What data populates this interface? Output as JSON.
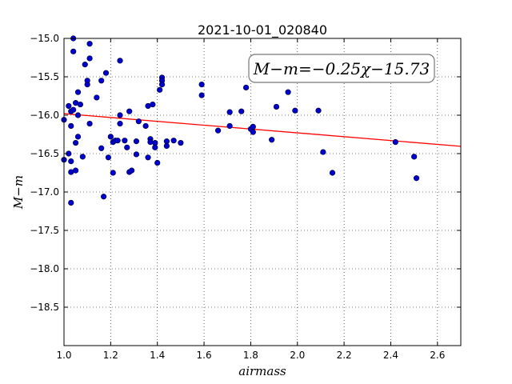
{
  "chart_data": {
    "type": "scatter",
    "title": "2021-10-01_020840",
    "xlabel": "airmass",
    "ylabel": "M−m",
    "annotation": "M−m=−0.25χ−15.73",
    "xlim": [
      1.0,
      2.7
    ],
    "ylim": [
      -15.0,
      -19.0
    ],
    "y_inverted": true,
    "grid": true,
    "x_ticks": [
      1.0,
      1.2,
      1.4,
      1.6,
      1.8,
      2.0,
      2.2,
      2.4,
      2.6
    ],
    "x_tick_labels": [
      "1.0",
      "1.2",
      "1.4",
      "1.6",
      "1.8",
      "2.0",
      "2.2",
      "2.4",
      "2.6"
    ],
    "y_ticks": [
      -15.0,
      -15.5,
      -16.0,
      -16.5,
      -17.0,
      -17.5,
      -18.0,
      -18.5
    ],
    "y_tick_labels": [
      "−15.0",
      "−15.5",
      "−16.0",
      "−16.5",
      "−17.0",
      "−17.5",
      "−18.0",
      "−18.5"
    ],
    "fit_line": {
      "slope": -0.25,
      "intercept": -15.73,
      "color": "#ff0000"
    },
    "point_color": "#0000cc",
    "points": [
      [
        1.0,
        -16.06
      ],
      [
        1.0,
        -16.58
      ],
      [
        1.02,
        -15.88
      ],
      [
        1.02,
        -16.5
      ],
      [
        1.03,
        -15.95
      ],
      [
        1.03,
        -16.14
      ],
      [
        1.03,
        -16.6
      ],
      [
        1.03,
        -16.74
      ],
      [
        1.03,
        -17.14
      ],
      [
        1.04,
        -15.0
      ],
      [
        1.04,
        -15.17
      ],
      [
        1.04,
        -15.93
      ],
      [
        1.05,
        -15.84
      ],
      [
        1.05,
        -16.36
      ],
      [
        1.05,
        -16.72
      ],
      [
        1.06,
        -15.7
      ],
      [
        1.06,
        -16.0
      ],
      [
        1.06,
        -16.28
      ],
      [
        1.07,
        -15.86
      ],
      [
        1.08,
        -16.54
      ],
      [
        1.09,
        -15.34
      ],
      [
        1.1,
        -15.6
      ],
      [
        1.1,
        -15.55
      ],
      [
        1.11,
        -15.07
      ],
      [
        1.11,
        -15.26
      ],
      [
        1.11,
        -16.11
      ],
      [
        1.14,
        -15.77
      ],
      [
        1.16,
        -15.55
      ],
      [
        1.16,
        -16.43
      ],
      [
        1.17,
        -17.06
      ],
      [
        1.18,
        -15.45
      ],
      [
        1.19,
        -16.55
      ],
      [
        1.2,
        -16.28
      ],
      [
        1.21,
        -16.35
      ],
      [
        1.21,
        -16.75
      ],
      [
        1.22,
        -16.33
      ],
      [
        1.23,
        -16.33
      ],
      [
        1.24,
        -15.29
      ],
      [
        1.24,
        -16.0
      ],
      [
        1.24,
        -16.11
      ],
      [
        1.26,
        -16.33
      ],
      [
        1.27,
        -16.42
      ],
      [
        1.28,
        -15.95
      ],
      [
        1.28,
        -16.74
      ],
      [
        1.29,
        -16.72
      ],
      [
        1.31,
        -16.34
      ],
      [
        1.31,
        -16.51
      ],
      [
        1.32,
        -16.08
      ],
      [
        1.35,
        -16.14
      ],
      [
        1.36,
        -15.88
      ],
      [
        1.36,
        -16.55
      ],
      [
        1.37,
        -16.31
      ],
      [
        1.37,
        -16.35
      ],
      [
        1.38,
        -15.86
      ],
      [
        1.39,
        -16.36
      ],
      [
        1.39,
        -16.42
      ],
      [
        1.4,
        -16.62
      ],
      [
        1.41,
        -15.67
      ],
      [
        1.42,
        -15.51
      ],
      [
        1.42,
        -15.55
      ],
      [
        1.42,
        -15.6
      ],
      [
        1.44,
        -16.34
      ],
      [
        1.44,
        -16.4
      ],
      [
        1.47,
        -16.33
      ],
      [
        1.5,
        -16.36
      ],
      [
        1.59,
        -15.6
      ],
      [
        1.59,
        -15.74
      ],
      [
        1.66,
        -16.2
      ],
      [
        1.71,
        -15.96
      ],
      [
        1.71,
        -16.14
      ],
      [
        1.76,
        -15.95
      ],
      [
        1.78,
        -15.64
      ],
      [
        1.8,
        -16.18
      ],
      [
        1.81,
        -16.15
      ],
      [
        1.81,
        -16.22
      ],
      [
        1.89,
        -16.32
      ],
      [
        1.91,
        -15.89
      ],
      [
        1.96,
        -15.7
      ],
      [
        1.99,
        -15.94
      ],
      [
        2.09,
        -15.94
      ],
      [
        2.11,
        -16.48
      ],
      [
        2.15,
        -16.75
      ],
      [
        2.42,
        -16.35
      ],
      [
        2.5,
        -16.54
      ],
      [
        2.51,
        -16.82
      ]
    ]
  }
}
